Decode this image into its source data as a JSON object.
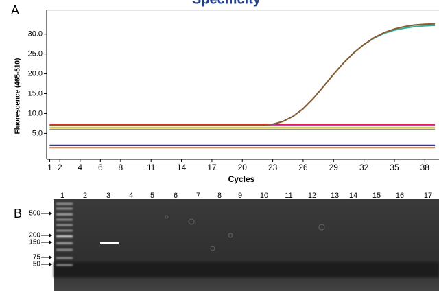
{
  "panel_labels": [
    "A",
    "B"
  ],
  "chart_data": {
    "type": "line",
    "title": "Specificity",
    "ylabel": "Fluorescence (465-510)",
    "xlabel": "Cycles",
    "x": [
      1,
      2,
      3,
      4,
      5,
      6,
      7,
      8,
      9,
      10,
      11,
      12,
      13,
      14,
      15,
      16,
      17,
      18,
      19,
      20,
      21,
      22,
      23,
      24,
      25,
      26,
      27,
      28,
      29,
      30,
      31,
      32,
      33,
      34,
      35,
      36,
      37,
      38,
      39
    ],
    "xlim": [
      0.7,
      39.4
    ],
    "xticks": [
      1,
      2,
      4,
      6,
      8,
      11,
      14,
      17,
      20,
      23,
      26,
      29,
      32,
      35,
      38
    ],
    "ylim": [
      -1.5,
      36
    ],
    "yticks": [
      {
        "value": 5,
        "label": "5.0"
      },
      {
        "value": 10,
        "label": "10.0"
      },
      {
        "value": 15,
        "label": "15.0"
      },
      {
        "value": 20,
        "label": "20.0"
      },
      {
        "value": 25,
        "label": "25.0"
      },
      {
        "value": 30,
        "label": "30.0"
      }
    ],
    "series": [
      {
        "color": "#d02020",
        "values": [
          7.3,
          7.3,
          7.3,
          7.3,
          7.3,
          7.3,
          7.3,
          7.3,
          7.3,
          7.3,
          7.3,
          7.3,
          7.3,
          7.3,
          7.3,
          7.3,
          7.3,
          7.3,
          7.3,
          7.3,
          7.3,
          7.3,
          7.3,
          7.3,
          7.3,
          7.3,
          7.3,
          7.3,
          7.3,
          7.3,
          7.3,
          7.3,
          7.3,
          7.3,
          7.3,
          7.3,
          7.3,
          7.3,
          7.3
        ]
      },
      {
        "color": "#c040c0",
        "values": [
          7.0,
          7.0,
          7.0,
          7.0,
          7.0,
          7.0,
          7.0,
          7.0,
          7.0,
          7.0,
          7.0,
          7.0,
          7.0,
          7.0,
          7.0,
          7.0,
          7.0,
          7.0,
          7.0,
          7.0,
          7.0,
          7.0,
          7.0,
          7.0,
          7.0,
          7.0,
          7.0,
          7.0,
          7.0,
          7.0,
          7.0,
          7.0,
          7.0,
          7.0,
          7.0,
          7.0,
          7.0,
          7.0,
          7.0
        ]
      },
      {
        "color": "#d8d020",
        "values": [
          6.5,
          6.5,
          6.5,
          6.5,
          6.5,
          6.5,
          6.5,
          6.5,
          6.5,
          6.5,
          6.5,
          6.5,
          6.5,
          6.5,
          6.5,
          6.5,
          6.5,
          6.5,
          6.5,
          6.5,
          6.5,
          6.5,
          6.5,
          6.5,
          6.5,
          6.5,
          6.5,
          6.5,
          6.5,
          6.5,
          6.5,
          6.5,
          6.5,
          6.5,
          6.5,
          6.5,
          6.5,
          6.5,
          6.5
        ]
      },
      {
        "color": "#909090",
        "values": [
          6.0,
          6.0,
          6.0,
          6.0,
          6.0,
          6.0,
          6.0,
          6.0,
          6.0,
          6.0,
          6.0,
          6.0,
          6.0,
          6.0,
          6.0,
          6.0,
          6.0,
          6.0,
          6.0,
          6.0,
          6.0,
          6.0,
          6.0,
          6.0,
          6.0,
          6.0,
          6.0,
          6.0,
          6.0,
          6.0,
          6.0,
          6.0,
          6.0,
          6.0,
          6.0,
          6.0,
          6.0,
          6.0,
          6.0
        ]
      },
      {
        "color": "#3030c0",
        "values": [
          2.0,
          2.0,
          2.0,
          2.0,
          2.0,
          2.0,
          2.0,
          2.0,
          2.0,
          2.0,
          2.0,
          2.0,
          2.0,
          2.0,
          2.0,
          2.0,
          2.0,
          2.0,
          2.0,
          2.0,
          2.0,
          2.0,
          2.0,
          2.0,
          2.0,
          2.0,
          2.0,
          2.0,
          2.0,
          2.0,
          2.0,
          2.0,
          2.0,
          2.0,
          2.0,
          2.0,
          2.0,
          2.0,
          2.0
        ]
      },
      {
        "color": "#c07020",
        "values": [
          1.4,
          1.4,
          1.4,
          1.4,
          1.4,
          1.4,
          1.4,
          1.4,
          1.4,
          1.4,
          1.4,
          1.4,
          1.4,
          1.4,
          1.4,
          1.4,
          1.4,
          1.4,
          1.4,
          1.4,
          1.4,
          1.4,
          1.4,
          1.4,
          1.4,
          1.4,
          1.4,
          1.4,
          1.4,
          1.4,
          1.4,
          1.4,
          1.4,
          1.4,
          1.4,
          1.4,
          1.4,
          1.4,
          1.4
        ]
      },
      {
        "color": "#30b0a0",
        "values": [
          7.0,
          7.0,
          7.0,
          7.0,
          7.0,
          7.0,
          7.0,
          7.0,
          7.0,
          7.0,
          7.0,
          7.0,
          7.0,
          7.0,
          7.0,
          7.0,
          7.0,
          7.0,
          7.0,
          7.0,
          7.0,
          7.0,
          7.3,
          8.0,
          9.3,
          11.2,
          13.8,
          16.8,
          19.9,
          22.8,
          25.3,
          27.4,
          29.0,
          30.2,
          31.0,
          31.5,
          31.9,
          32.1,
          32.2
        ]
      },
      {
        "color": "#8a5a30",
        "values": [
          7.0,
          7.0,
          7.0,
          7.0,
          7.0,
          7.0,
          7.0,
          7.0,
          7.0,
          7.0,
          7.0,
          7.0,
          7.0,
          7.0,
          7.0,
          7.0,
          7.0,
          7.0,
          7.0,
          7.0,
          7.0,
          7.0,
          7.3,
          8.0,
          9.3,
          11.2,
          13.8,
          16.8,
          19.9,
          22.8,
          25.3,
          27.4,
          29.1,
          30.4,
          31.3,
          31.9,
          32.3,
          32.5,
          32.6
        ]
      }
    ]
  },
  "gel": {
    "lane_labels": [
      "1",
      "2",
      "3",
      "4",
      "5",
      "6",
      "7",
      "8",
      "9",
      "10",
      "11",
      "12",
      "13",
      "14",
      "15",
      "16",
      "17"
    ],
    "ladder_labels": [
      "500",
      "200",
      "150",
      "75",
      "50"
    ]
  }
}
